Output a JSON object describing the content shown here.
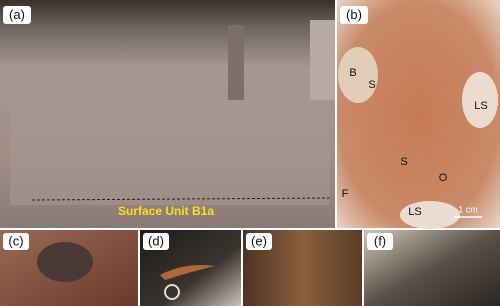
{
  "panels": [
    {
      "label": "(a)",
      "caption": "Surface Unit B1a"
    },
    {
      "label": "(b)",
      "annotations": [
        "B",
        "S",
        "LS",
        "S",
        "F",
        "O",
        "LS"
      ],
      "scale": "1 cm"
    },
    {
      "label": "(c)"
    },
    {
      "label": "(d)"
    },
    {
      "label": "(e)"
    },
    {
      "label": "(f)"
    }
  ]
}
